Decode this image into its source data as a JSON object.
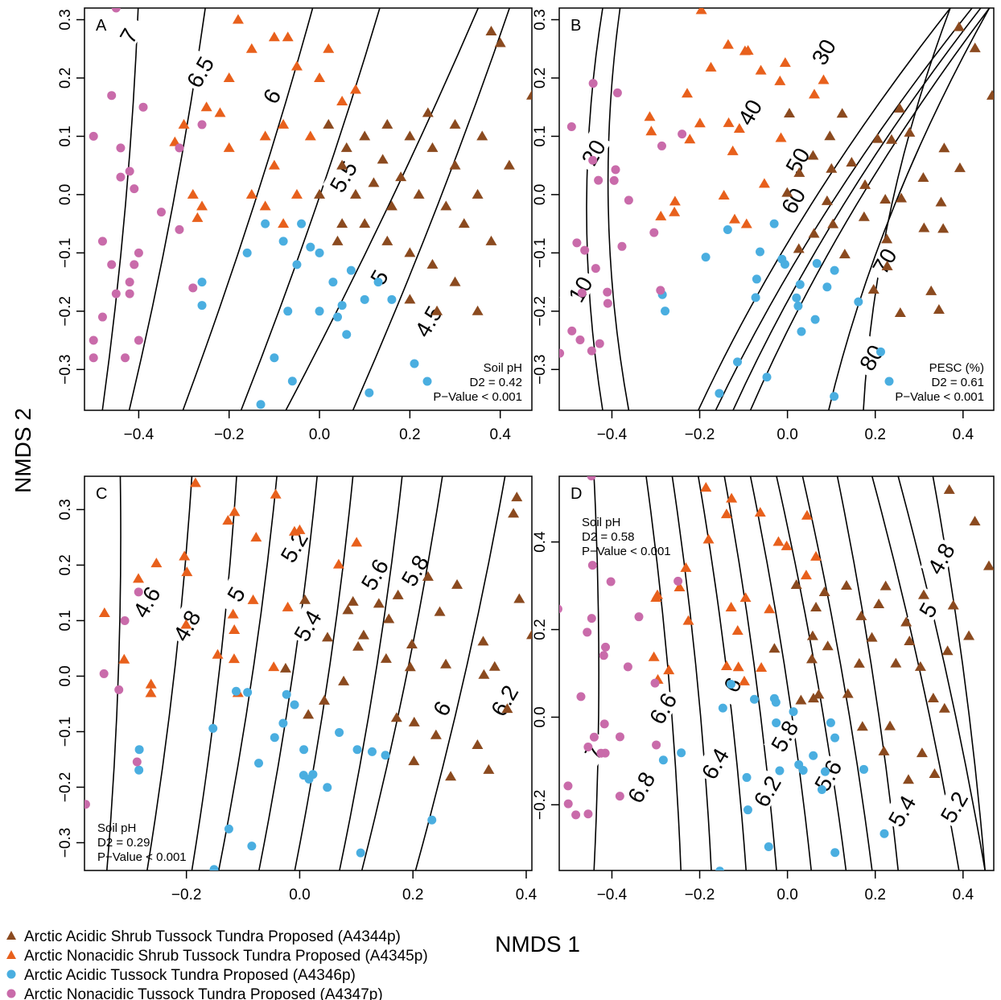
{
  "figure": {
    "shared_xlabel": "NMDS 1",
    "shared_ylabel": "NMDS 2"
  },
  "legend": {
    "items": [
      {
        "label": "Arctic Acidic Shrub Tussock Tundra Proposed (A4344p)",
        "marker": "triangle",
        "color": "#8B4A1F"
      },
      {
        "label": "Arctic Nonacidic Shrub Tussock Tundra Proposed (A4345p)",
        "marker": "triangle",
        "color": "#E8601C"
      },
      {
        "label": "Arctic Acidic Tussock Tundra Proposed (A4346p)",
        "marker": "circle",
        "color": "#4AAEE0"
      },
      {
        "label": "Arctic Nonacidic Tussock Tundra Proposed (A4347p)",
        "marker": "circle",
        "color": "#C96BAA"
      }
    ]
  },
  "chart_data": [
    {
      "type": "scatter",
      "panel_label": "A",
      "xlim": [
        -0.52,
        0.47
      ],
      "ylim": [
        -0.37,
        0.32
      ],
      "xticks": [
        "−0.4",
        "−0.2",
        "0.0",
        "0.2",
        "0.4"
      ],
      "xtick_values": [
        -0.4,
        -0.2,
        0.0,
        0.2,
        0.4
      ],
      "yticks": [
        "−0.3",
        "−0.2",
        "−0.1",
        "0.0",
        "0.1",
        "0.2",
        "0.3"
      ],
      "ytick_values": [
        -0.3,
        -0.2,
        -0.1,
        0.0,
        0.1,
        0.2,
        0.3
      ],
      "stats": {
        "var": "Soil pH",
        "d2": "D2 = 0.42",
        "p": "P−Value < 0.001",
        "position": "bottom-right"
      },
      "series": [
        {
          "name": "A4344p",
          "marker": "triangle",
          "color": "#8B4A1F",
          "points": [
            [
              0.0,
              0.0
            ],
            [
              0.05,
              0.05
            ],
            [
              0.1,
              0.1
            ],
            [
              0.15,
              0.12
            ],
            [
              0.2,
              0.1
            ],
            [
              0.25,
              0.08
            ],
            [
              0.3,
              0.05
            ],
            [
              0.35,
              0.0
            ],
            [
              0.05,
              -0.05
            ],
            [
              0.1,
              -0.05
            ],
            [
              0.15,
              -0.08
            ],
            [
              0.2,
              -0.1
            ],
            [
              0.25,
              -0.12
            ],
            [
              0.3,
              -0.15
            ],
            [
              0.35,
              -0.2
            ],
            [
              0.08,
              0.0
            ],
            [
              0.12,
              0.02
            ],
            [
              0.18,
              0.03
            ],
            [
              0.22,
              0.0
            ],
            [
              0.28,
              -0.02
            ],
            [
              0.32,
              -0.05
            ],
            [
              0.38,
              -0.08
            ],
            [
              0.02,
              0.12
            ],
            [
              0.06,
              0.08
            ],
            [
              0.14,
              0.06
            ],
            [
              0.24,
              0.14
            ],
            [
              0.3,
              0.12
            ],
            [
              0.36,
              0.1
            ],
            [
              0.42,
              0.05
            ],
            [
              0.38,
              0.28
            ],
            [
              0.4,
              0.26
            ],
            [
              0.47,
              0.17
            ],
            [
              0.2,
              -0.18
            ],
            [
              0.26,
              -0.2
            ],
            [
              0.04,
              -0.08
            ],
            [
              0.16,
              -0.02
            ]
          ]
        },
        {
          "name": "A4345p",
          "marker": "triangle",
          "color": "#E8601C",
          "points": [
            [
              -0.3,
              0.12
            ],
            [
              -0.25,
              0.15
            ],
            [
              -0.2,
              0.2
            ],
            [
              -0.15,
              0.25
            ],
            [
              -0.1,
              0.27
            ],
            [
              -0.05,
              0.22
            ],
            [
              0.0,
              0.2
            ],
            [
              0.05,
              0.16
            ],
            [
              -0.12,
              0.1
            ],
            [
              -0.08,
              0.12
            ],
            [
              -0.02,
              0.1
            ],
            [
              -0.1,
              0.05
            ],
            [
              -0.05,
              0.0
            ],
            [
              -0.15,
              0.0
            ],
            [
              -0.2,
              0.08
            ],
            [
              -0.28,
              0.0
            ],
            [
              -0.26,
              -0.02
            ],
            [
              -0.27,
              -0.04
            ],
            [
              -0.32,
              0.09
            ],
            [
              -0.18,
              0.3
            ],
            [
              -0.07,
              0.27
            ],
            [
              0.02,
              0.25
            ],
            [
              0.08,
              0.18
            ],
            [
              -0.22,
              0.14
            ],
            [
              -0.12,
              -0.02
            ],
            [
              -0.08,
              -0.05
            ]
          ]
        },
        {
          "name": "A4346p",
          "marker": "circle",
          "color": "#4AAEE0",
          "points": [
            [
              -0.16,
              -0.1
            ],
            [
              -0.12,
              -0.05
            ],
            [
              -0.08,
              -0.08
            ],
            [
              -0.05,
              -0.12
            ],
            [
              -0.02,
              -0.09
            ],
            [
              0.0,
              -0.1
            ],
            [
              0.03,
              -0.15
            ],
            [
              0.05,
              -0.19
            ],
            [
              0.07,
              -0.13
            ],
            [
              0.1,
              -0.18
            ],
            [
              -0.06,
              -0.32
            ],
            [
              -0.1,
              -0.28
            ],
            [
              -0.13,
              -0.36
            ],
            [
              -0.26,
              -0.15
            ],
            [
              -0.26,
              -0.19
            ],
            [
              0.06,
              -0.24
            ],
            [
              0.11,
              -0.34
            ],
            [
              0.21,
              -0.29
            ],
            [
              0.16,
              -0.18
            ],
            [
              0.13,
              -0.15
            ],
            [
              -0.04,
              -0.05
            ],
            [
              0.0,
              -0.2
            ],
            [
              -0.07,
              -0.2
            ],
            [
              0.04,
              -0.21
            ]
          ]
        },
        {
          "name": "A4347p",
          "marker": "circle",
          "color": "#C96BAA",
          "points": [
            [
              -0.45,
              0.32
            ],
            [
              -0.46,
              0.17
            ],
            [
              -0.39,
              0.15
            ],
            [
              -0.5,
              0.1
            ],
            [
              -0.44,
              0.08
            ],
            [
              -0.42,
              0.04
            ],
            [
              -0.44,
              0.03
            ],
            [
              -0.41,
              0.01
            ],
            [
              -0.48,
              -0.08
            ],
            [
              -0.4,
              -0.1
            ],
            [
              -0.41,
              -0.12
            ],
            [
              -0.46,
              -0.12
            ],
            [
              -0.42,
              -0.15
            ],
            [
              -0.42,
              -0.17
            ],
            [
              -0.45,
              -0.17
            ],
            [
              -0.48,
              -0.21
            ],
            [
              -0.5,
              -0.25
            ],
            [
              -0.4,
              -0.25
            ],
            [
              -0.5,
              -0.28
            ],
            [
              -0.43,
              -0.28
            ],
            [
              -0.35,
              -0.03
            ],
            [
              -0.31,
              -0.06
            ],
            [
              -0.26,
              0.12
            ],
            [
              -0.28,
              -0.16
            ],
            [
              -0.31,
              0.08
            ]
          ]
        }
      ],
      "contours": [
        {
          "label": "7"
        },
        {
          "label": "6.5"
        },
        {
          "label": "6"
        },
        {
          "label": "5.5"
        },
        {
          "label": "5"
        },
        {
          "label": "4.5"
        }
      ]
    },
    {
      "type": "scatter",
      "panel_label": "B",
      "xlim": [
        -0.52,
        0.47
      ],
      "ylim": [
        -0.37,
        0.32
      ],
      "xticks": [
        "−0.4",
        "−0.2",
        "0.0",
        "0.2",
        "0.4"
      ],
      "xtick_values": [
        -0.4,
        -0.2,
        0.0,
        0.2,
        0.4
      ],
      "yticks": [
        "−0.3",
        "−0.2",
        "−0.1",
        "0.0",
        "0.1",
        "0.2",
        "0.3"
      ],
      "ytick_values": [
        -0.3,
        -0.2,
        -0.1,
        0.0,
        0.1,
        0.2,
        0.3
      ],
      "stats": {
        "var": "PESC (%)",
        "d2": "D2 = 0.61",
        "p": "P−Value < 0.001",
        "position": "bottom-right"
      },
      "contours": [
        {
          "label": "10"
        },
        {
          "label": "20"
        },
        {
          "label": "30"
        },
        {
          "label": "40"
        },
        {
          "label": "50"
        },
        {
          "label": "60"
        },
        {
          "label": "70"
        },
        {
          "label": "80"
        }
      ]
    },
    {
      "type": "scatter",
      "panel_label": "C",
      "xlim": [
        -0.38,
        0.41
      ],
      "ylim": [
        -0.35,
        0.36
      ],
      "xticks": [
        "−0.2",
        "0.0",
        "0.2",
        "0.4"
      ],
      "xtick_values": [
        -0.2,
        0.0,
        0.2,
        0.4
      ],
      "yticks": [
        "−0.3",
        "−0.2",
        "−0.1",
        "0.0",
        "0.1",
        "0.2",
        "0.3"
      ],
      "ytick_values": [
        -0.3,
        -0.2,
        -0.1,
        0.0,
        0.1,
        0.2,
        0.3
      ],
      "stats": {
        "var": "Soil pH",
        "d2": "D2 = 0.29",
        "p": "P−Value < 0.001",
        "position": "bottom-left"
      },
      "contours": [
        {
          "label": "4.6"
        },
        {
          "label": "4.8"
        },
        {
          "label": "5"
        },
        {
          "label": "5.2"
        },
        {
          "label": "5.4"
        },
        {
          "label": "5.6"
        },
        {
          "label": "5.8"
        },
        {
          "label": "6"
        },
        {
          "label": "6.2"
        }
      ]
    },
    {
      "type": "scatter",
      "panel_label": "D",
      "xlim": [
        -0.52,
        0.47
      ],
      "ylim": [
        -0.35,
        0.55
      ],
      "xticks": [
        "−0.4",
        "−0.2",
        "0.0",
        "0.2",
        "0.4"
      ],
      "xtick_values": [
        -0.4,
        -0.2,
        0.0,
        0.2,
        0.4
      ],
      "yticks": [
        "−0.2",
        "0.0",
        "0.2",
        "0.4"
      ],
      "ytick_values": [
        -0.2,
        0.0,
        0.2,
        0.4
      ],
      "stats": {
        "var": "Soil pH",
        "d2": "D2 = 0.58",
        "p": "P−Value < 0.001",
        "position": "top-left"
      },
      "contours": [
        {
          "label": "7"
        },
        {
          "label": "6.8"
        },
        {
          "label": "6.6"
        },
        {
          "label": "6.4"
        },
        {
          "label": "6.2"
        },
        {
          "label": "6"
        },
        {
          "label": "5.8"
        },
        {
          "label": "5.6"
        },
        {
          "label": "5.4"
        },
        {
          "label": "5.2"
        },
        {
          "label": "5"
        },
        {
          "label": "4.8"
        }
      ]
    }
  ]
}
